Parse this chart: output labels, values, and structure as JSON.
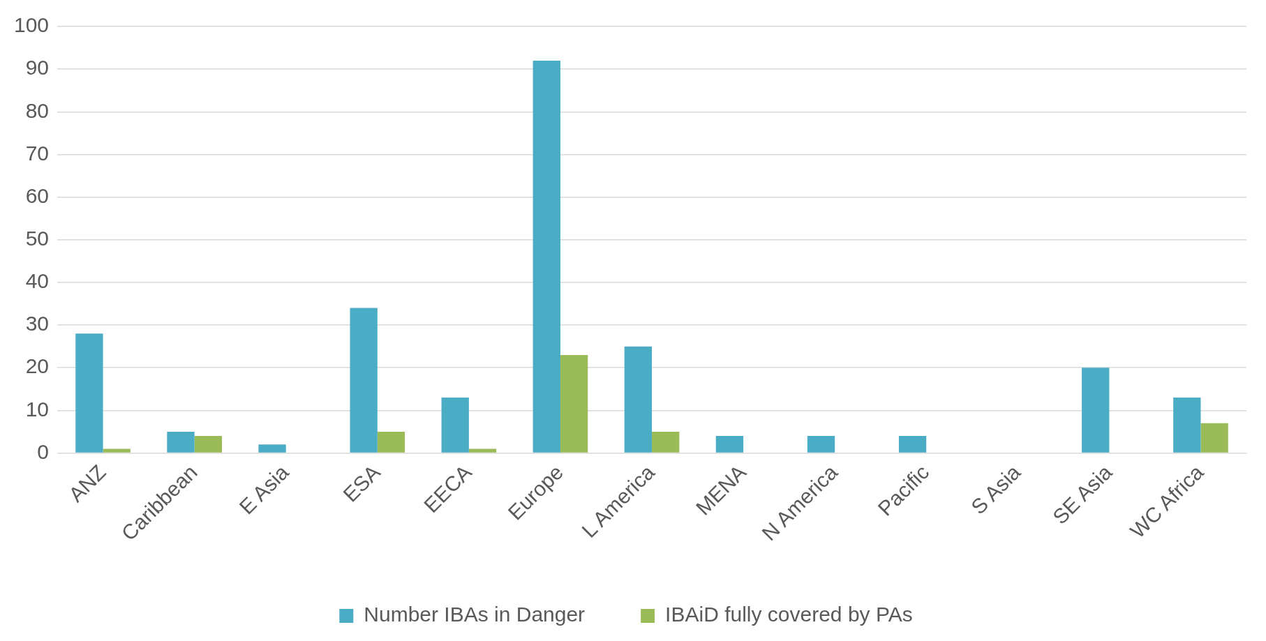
{
  "chart_data": {
    "type": "bar",
    "categories": [
      "ANZ",
      "Caribbean",
      "E Asia",
      "ESA",
      "EECA",
      "Europe",
      "L America",
      "MENA",
      "N America",
      "Pacific",
      "S Asia",
      "SE Asia",
      "WC Africa"
    ],
    "series": [
      {
        "name": "Number IBAs in Danger",
        "color": "#4bacc6",
        "values": [
          28,
          5,
          2,
          34,
          13,
          92,
          25,
          4,
          4,
          4,
          0,
          20,
          13
        ]
      },
      {
        "name": "IBAiD fully covered by PAs",
        "color": "#9bbb59",
        "values": [
          1,
          4,
          0,
          5,
          1,
          23,
          5,
          0,
          0,
          0,
          0,
          0,
          7
        ]
      }
    ],
    "ylim": [
      0,
      100
    ],
    "yticks": [
      0,
      10,
      20,
      30,
      40,
      50,
      60,
      70,
      80,
      90,
      100
    ],
    "grid": "y",
    "legend": "bottom"
  }
}
